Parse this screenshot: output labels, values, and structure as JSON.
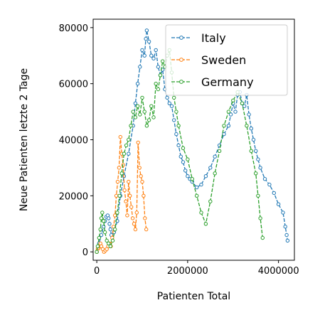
{
  "chart_data": {
    "type": "line",
    "title": "",
    "xlabel": "Patienten Total",
    "ylabel": "Neue Patienten letzte 2 Tage",
    "xlim": [
      -80000,
      4350000
    ],
    "ylim": [
      -3000,
      83000
    ],
    "xticks": [
      0,
      2000000,
      4000000
    ],
    "xtick_labels": [
      "0",
      "2000000",
      "4000000"
    ],
    "yticks": [
      0,
      20000,
      40000,
      60000,
      80000
    ],
    "ytick_labels": [
      "0",
      "20000",
      "40000",
      "60000",
      "80000"
    ],
    "grid": false,
    "legend_position": "top-right",
    "line_style": "dashed",
    "marker": "hollow-circle",
    "series": [
      {
        "name": "Italy",
        "color": "#1f77b4",
        "x": [
          0,
          50000,
          100000,
          150000,
          180000,
          210000,
          240000,
          260000,
          280000,
          300000,
          320000,
          380000,
          450000,
          520000,
          600000,
          700000,
          800000,
          850000,
          900000,
          950000,
          1000000,
          1050000,
          1080000,
          1100000,
          1150000,
          1200000,
          1250000,
          1300000,
          1350000,
          1400000,
          1450000,
          1500000,
          1550000,
          1600000,
          1650000,
          1700000,
          1750000,
          1800000,
          1850000,
          1900000,
          1950000,
          2000000,
          2050000,
          2100000,
          2200000,
          2300000,
          2400000,
          2500000,
          2600000,
          2700000,
          2800000,
          2900000,
          2950000,
          3000000,
          3050000,
          3100000,
          3150000,
          3200000,
          3250000,
          3300000,
          3350000,
          3400000,
          3450000,
          3500000,
          3550000,
          3600000,
          3700000,
          3800000,
          3900000,
          4000000,
          4100000,
          4150000,
          4180000,
          4200000
        ],
        "values": [
          0,
          3000,
          6000,
          9000,
          11000,
          12500,
          13000,
          12000,
          10000,
          8000,
          6000,
          7000,
          11000,
          20000,
          27000,
          35000,
          45000,
          53000,
          60000,
          66000,
          72000,
          70000,
          76000,
          79000,
          75000,
          70000,
          69000,
          72000,
          66000,
          63000,
          65000,
          58000,
          55000,
          53000,
          52000,
          47000,
          42000,
          38000,
          34000,
          32000,
          29000,
          27000,
          26000,
          25000,
          23000,
          24000,
          27000,
          30000,
          34000,
          38000,
          42000,
          45000,
          49000,
          53000,
          50000,
          56000,
          57000,
          53000,
          52000,
          56000,
          49000,
          44000,
          40000,
          36000,
          33000,
          30000,
          26000,
          24000,
          21000,
          17000,
          14000,
          9000,
          6000,
          4000
        ]
      },
      {
        "name": "Sweden",
        "color": "#ff7f0e",
        "x": [
          0,
          20000,
          40000,
          60000,
          80000,
          100000,
          130000,
          160000,
          190000,
          220000,
          250000,
          280000,
          310000,
          340000,
          370000,
          400000,
          430000,
          460000,
          490000,
          520000,
          550000,
          580000,
          610000,
          640000,
          670000,
          700000,
          730000,
          760000,
          790000,
          820000,
          850000,
          880000,
          910000,
          940000,
          970000,
          1000000,
          1030000,
          1060000,
          1090000
        ],
        "values": [
          0,
          1000,
          1500,
          2000,
          3000,
          2000,
          1000,
          0,
          500,
          1000,
          2000,
          3000,
          2000,
          5000,
          9000,
          13000,
          20000,
          25000,
          30000,
          41000,
          35000,
          31000,
          22000,
          18000,
          13000,
          25000,
          20000,
          16000,
          12000,
          10000,
          8000,
          14000,
          39000,
          30000,
          27000,
          25000,
          20000,
          12000,
          8000
        ]
      },
      {
        "name": "Germany",
        "color": "#2ca02c",
        "x": [
          0,
          20000,
          50000,
          80000,
          100000,
          120000,
          150000,
          180000,
          220000,
          260000,
          300000,
          350000,
          400000,
          450000,
          500000,
          550000,
          600000,
          650000,
          700000,
          750000,
          800000,
          850000,
          900000,
          950000,
          1000000,
          1050000,
          1100000,
          1150000,
          1200000,
          1250000,
          1300000,
          1350000,
          1400000,
          1450000,
          1500000,
          1550000,
          1600000,
          1650000,
          1700000,
          1750000,
          1800000,
          1900000,
          2000000,
          2100000,
          2200000,
          2300000,
          2400000,
          2500000,
          2600000,
          2700000,
          2800000,
          2900000,
          3000000,
          3100000,
          3200000,
          3300000,
          3400000,
          3500000,
          3550000,
          3600000,
          3650000
        ],
        "values": [
          0,
          2000,
          5000,
          8000,
          12000,
          14000,
          11000,
          7000,
          4000,
          3000,
          2000,
          4000,
          8000,
          14000,
          20000,
          28000,
          35000,
          38000,
          40000,
          45000,
          50000,
          48000,
          52000,
          49000,
          55000,
          50000,
          45000,
          47000,
          52000,
          48000,
          60000,
          58000,
          63000,
          68000,
          66000,
          70000,
          72000,
          64000,
          55000,
          50000,
          45000,
          37000,
          33000,
          26000,
          20000,
          14000,
          10000,
          18000,
          28000,
          36000,
          45000,
          50000,
          54000,
          57000,
          53000,
          45000,
          36000,
          28000,
          20000,
          12000,
          5000
        ]
      }
    ]
  }
}
